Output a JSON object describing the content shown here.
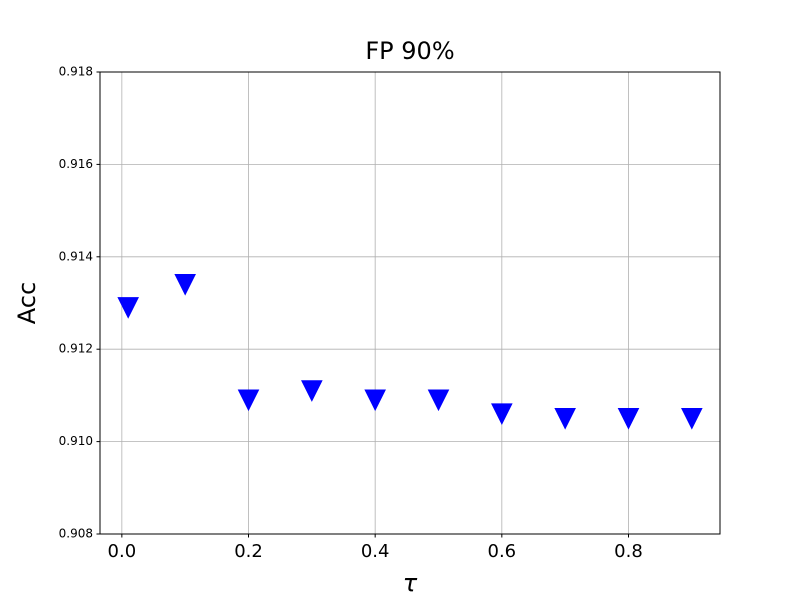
{
  "chart_data": {
    "type": "scatter",
    "title": "FP 90%",
    "x_label": "τ",
    "y_label": "Acc",
    "x": [
      0.01,
      0.1,
      0.2,
      0.3,
      0.4,
      0.5,
      0.6,
      0.7,
      0.8,
      0.9
    ],
    "series": [
      {
        "color": "#0000ff",
        "marker": "triangle_down",
        "values": [
          0.9129,
          0.9134,
          0.9109,
          0.9111,
          0.9109,
          0.9109,
          0.9106,
          0.9105,
          0.9105,
          0.9105
        ]
      }
    ],
    "xlim": [
      -0.0345,
      0.9445
    ],
    "xticks": [
      {
        "value": 0,
        "label": "0.0"
      },
      0.2,
      0.4,
      0.6,
      0.8
    ],
    "ylim": [
      0.908,
      0.918
    ],
    "yticks": [
      0.908,
      {
        "value": 0.91,
        "label": "0.910"
      },
      0.912,
      0.914,
      0.916,
      0.918
    ],
    "grid": true
  }
}
